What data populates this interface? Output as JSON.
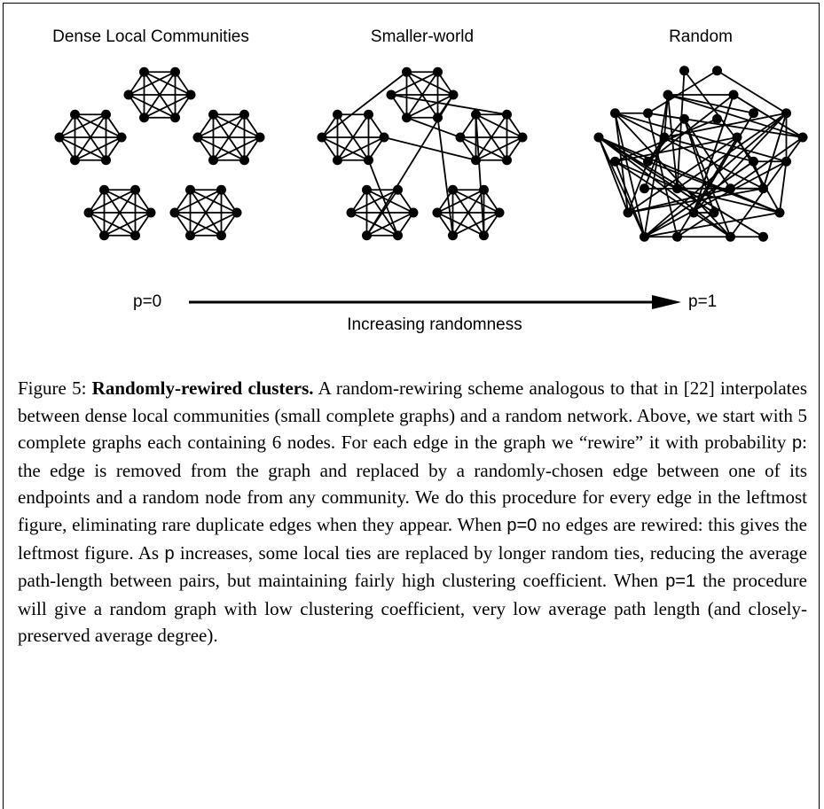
{
  "figure": {
    "panels": [
      "Dense Local Communities",
      "Smaller-world",
      "Random"
    ],
    "arrow": {
      "start": "p=0",
      "end": "p=1",
      "label": "Increasing randomness"
    }
  },
  "caption": {
    "label": "Figure 5:",
    "title": "Randomly-rewired clusters.",
    "body": [
      {
        "text": " A random-rewiring scheme analogous to that in [22] interpolates between dense local communities (small complete graphs) and a random network. Above, we start with 5 complete graphs each containing 6 nodes. For each edge in the graph we “rewire” it with probability "
      },
      {
        "sym": "p"
      },
      {
        "text": ": the edge is removed from the graph and replaced by a randomly-chosen edge between one of its endpoints and a random node from any community. We do this procedure for every edge in the leftmost figure, eliminating rare duplicate edges when they appear. When "
      },
      {
        "sym": "p=0"
      },
      {
        "text": " no edges are rewired: this gives the leftmost figure.  As "
      },
      {
        "sym": "p"
      },
      {
        "text": " increases, some local ties are replaced by longer random ties, reducing the average path-length between pairs, but maintaining fairly high clustering coefficient.  When "
      },
      {
        "sym": "p=1"
      },
      {
        "text": " the procedure will give a random graph with low clustering coefficient, very low average path length (and closely-preserved average degree)."
      }
    ]
  }
}
